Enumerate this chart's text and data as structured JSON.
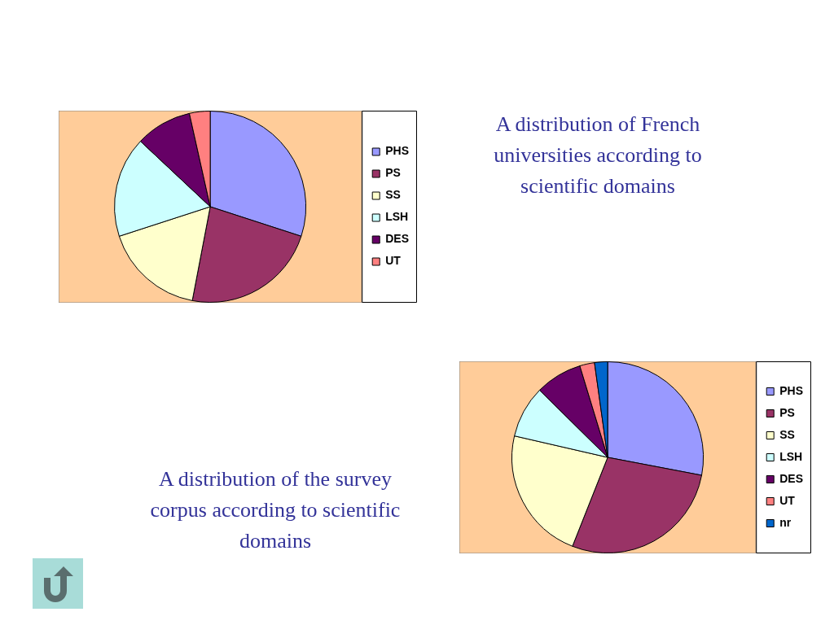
{
  "chart_data": [
    {
      "type": "pie",
      "title": "A distribution of French universities according to scientific domains",
      "categories": [
        "PHS",
        "PS",
        "SS",
        "LSH",
        "DES",
        "UT"
      ],
      "values": [
        30,
        23,
        17,
        17,
        9.5,
        3.5
      ],
      "colors": [
        "#9999ff",
        "#993366",
        "#ffffcc",
        "#ccffff",
        "#660066",
        "#ff8080"
      ],
      "legend": "right"
    },
    {
      "type": "pie",
      "title": "A distribution of the survey corpus according to scientific domains",
      "categories": [
        "PHS",
        "PS",
        "SS",
        "LSH",
        "DES",
        "UT",
        "nr"
      ],
      "values": [
        28,
        28,
        22.6,
        8.8,
        7.9,
        2.5,
        2.2
      ],
      "colors": [
        "#9999ff",
        "#993366",
        "#ffffcc",
        "#ccffff",
        "#660066",
        "#ff8080",
        "#0066cc"
      ],
      "legend": "right"
    }
  ]
}
